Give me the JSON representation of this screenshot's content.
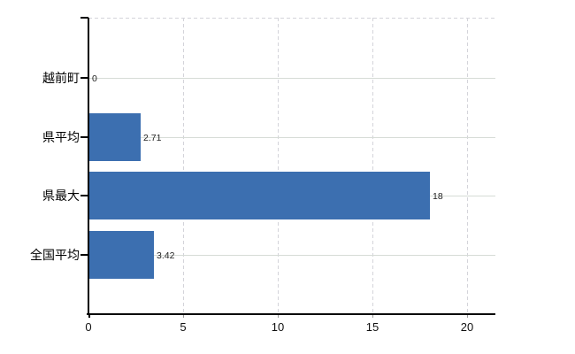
{
  "chart_data": {
    "type": "bar",
    "orientation": "horizontal",
    "title": "",
    "xlabel": "",
    "ylabel": "",
    "categories": [
      "越前町",
      "県平均",
      "県最大",
      "全国平均"
    ],
    "values": [
      0,
      2.71,
      18,
      3.42
    ],
    "value_labels": [
      "0",
      "2.71",
      "18",
      "3.42"
    ],
    "x_ticks": [
      0,
      5,
      10,
      15,
      20
    ],
    "x_tick_labels": [
      "0",
      "5",
      "10",
      "15",
      "20"
    ],
    "xlim": [
      0,
      21.5
    ],
    "grid": {
      "horizontal": "solid",
      "vertical": "dashed",
      "top_border": "dashed"
    },
    "legend": "none",
    "colors": {
      "bar": "#3c6fb0",
      "axis": "#000000",
      "hgrid": "#d6dcd6",
      "vgrid": "#d4d4da",
      "value_label": "#222222",
      "tick_label": "#111111"
    }
  }
}
